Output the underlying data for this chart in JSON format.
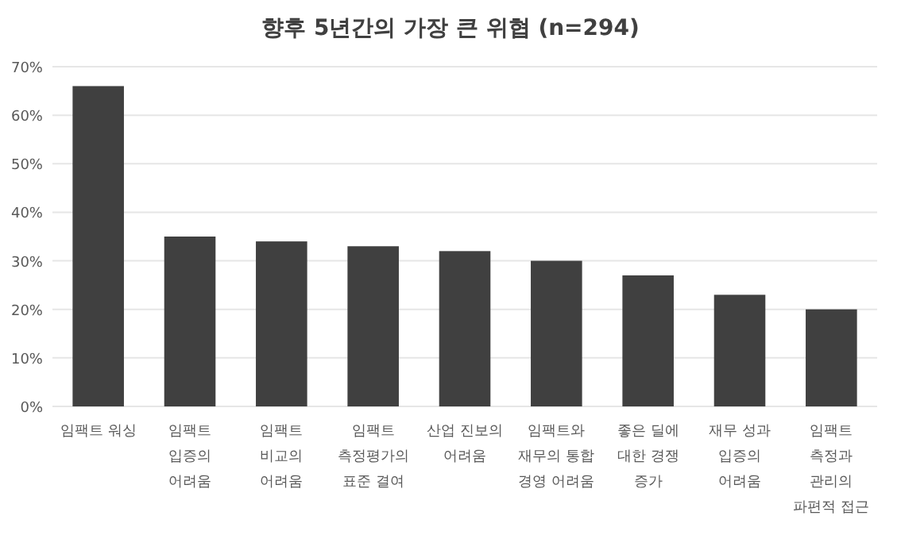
{
  "chart_data": {
    "type": "bar",
    "title": "향후 5년간의 가장 큰 위협 (n=294)",
    "categories": [
      "임팩트 워싱",
      "임팩트\n입증의\n어려움",
      "임팩트\n비교의\n어려움",
      "임팩트\n측정평가의\n표준 결여",
      "산업 진보의\n어려움",
      "임팩트와\n재무의 통합\n경영 어려움",
      "좋은 딜에\n대한 경쟁\n증가",
      "재무 성과\n입증의\n어려움",
      "임팩트\n측정과\n관리의\n파편적 접근"
    ],
    "values": [
      66,
      35,
      34,
      33,
      32,
      30,
      27,
      23,
      20
    ],
    "color": "#404040",
    "ylim": [
      0,
      70
    ],
    "yticks": [
      {
        "value": 0,
        "label": "0%"
      },
      {
        "value": 10,
        "label": "10%"
      },
      {
        "value": 20,
        "label": "20%"
      },
      {
        "value": 30,
        "label": "30%"
      },
      {
        "value": 40,
        "label": "40%"
      },
      {
        "value": 50,
        "label": "50%"
      },
      {
        "value": 60,
        "label": "60%"
      },
      {
        "value": 70,
        "label": "70%"
      }
    ],
    "grid": "y"
  }
}
